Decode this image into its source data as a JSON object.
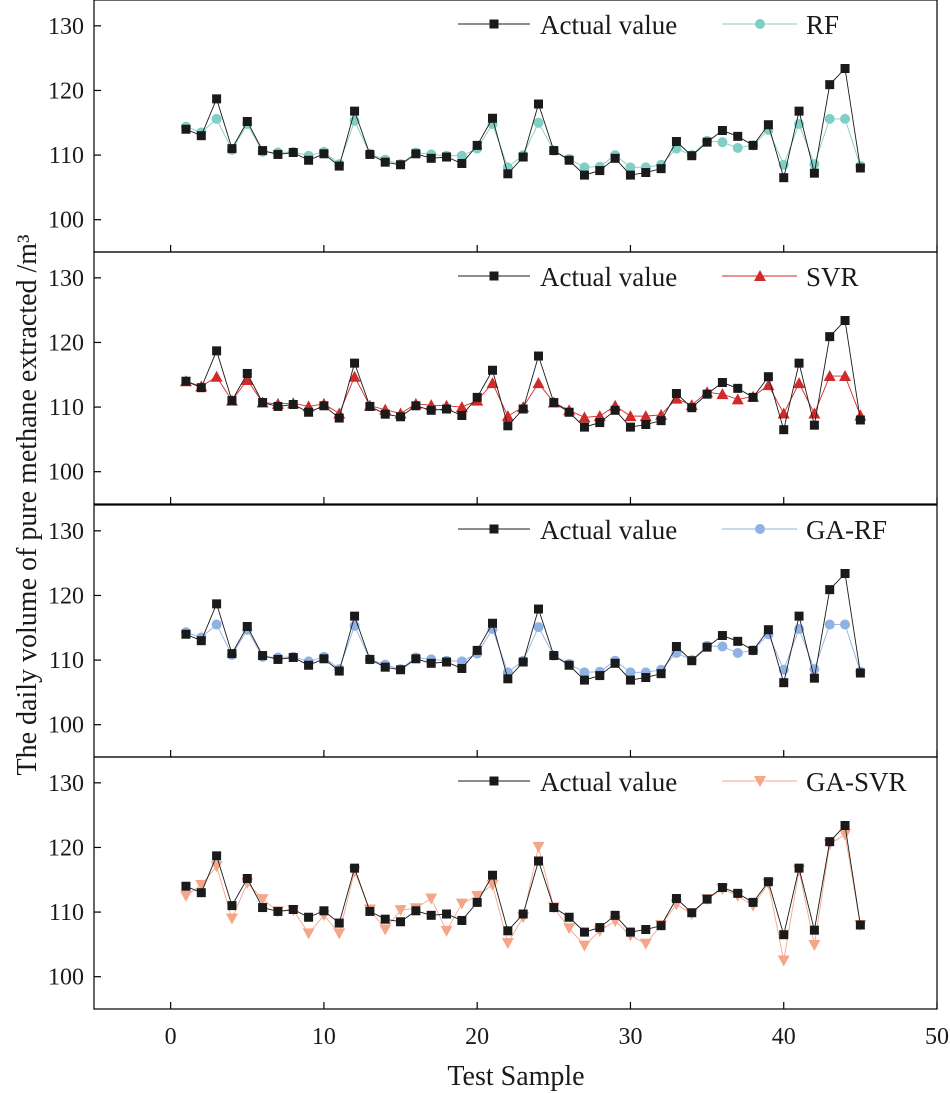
{
  "chart_data": {
    "type": "line",
    "xlabel": "Test Sample",
    "ylabel": "The daily volume of pure methane extracted /m³",
    "xlim": [
      -5,
      50
    ],
    "ylim": [
      95,
      134
    ],
    "xticks": [
      0,
      10,
      20,
      30,
      40,
      50
    ],
    "yticks": [
      100,
      110,
      120,
      130
    ],
    "x": [
      1,
      2,
      3,
      4,
      5,
      6,
      7,
      8,
      9,
      10,
      11,
      12,
      13,
      14,
      15,
      16,
      17,
      18,
      19,
      20,
      21,
      22,
      23,
      24,
      25,
      26,
      27,
      28,
      29,
      30,
      31,
      32,
      33,
      34,
      35,
      36,
      37,
      38,
      39,
      40,
      41,
      42,
      43,
      44,
      45
    ],
    "actual": {
      "name": "Actual value",
      "color": "#1a1a1a",
      "marker": "square",
      "values": [
        114.0,
        113.0,
        118.7,
        111.0,
        115.2,
        110.7,
        110.1,
        110.4,
        109.2,
        110.2,
        108.3,
        116.8,
        110.1,
        108.9,
        108.5,
        110.2,
        109.5,
        109.7,
        108.7,
        111.5,
        115.7,
        107.1,
        109.7,
        117.9,
        110.7,
        109.2,
        106.9,
        107.6,
        109.5,
        106.9,
        107.3,
        107.9,
        112.1,
        109.9,
        112.0,
        113.8,
        112.9,
        111.5,
        114.7,
        106.5,
        116.8,
        107.2,
        120.9,
        123.4,
        108.0
      ]
    },
    "panels": [
      {
        "name": "RF",
        "color": "#7fcfc4",
        "marker": "circle",
        "values": [
          114.4,
          113.5,
          115.6,
          110.8,
          114.8,
          110.5,
          110.4,
          110.5,
          109.9,
          110.5,
          108.6,
          115.3,
          110.2,
          109.3,
          108.6,
          110.4,
          110.1,
          109.9,
          109.9,
          111.0,
          114.8,
          108.1,
          110.0,
          115.0,
          110.7,
          109.4,
          108.1,
          108.2,
          110.0,
          108.1,
          108.1,
          108.5,
          111.0,
          110.0,
          112.2,
          112.0,
          111.1,
          111.5,
          113.9,
          108.5,
          114.8,
          108.6,
          115.6,
          115.6,
          108.3
        ]
      },
      {
        "name": "SVR",
        "color": "#d12a2a",
        "marker": "triangle-up",
        "values": [
          114.0,
          113.2,
          114.7,
          111.0,
          114.2,
          110.7,
          110.5,
          110.6,
          110.1,
          110.5,
          109.0,
          114.7,
          110.2,
          109.6,
          109.0,
          110.5,
          110.3,
          110.2,
          110.0,
          111.0,
          113.7,
          108.6,
          110.0,
          113.7,
          110.7,
          109.5,
          108.4,
          108.6,
          110.2,
          108.6,
          108.6,
          108.8,
          111.3,
          110.3,
          112.3,
          112.0,
          111.2,
          111.6,
          113.4,
          109.0,
          113.7,
          109.0,
          114.8,
          114.8,
          108.7
        ]
      },
      {
        "name": "GA-RF",
        "color": "#8fb1e3",
        "marker": "circle",
        "values": [
          114.3,
          113.5,
          115.5,
          110.8,
          114.7,
          110.5,
          110.4,
          110.5,
          109.8,
          110.5,
          108.6,
          115.3,
          110.1,
          109.3,
          108.6,
          110.4,
          110.1,
          109.9,
          109.8,
          111.0,
          114.8,
          108.1,
          109.9,
          115.1,
          110.7,
          109.4,
          108.1,
          108.2,
          109.9,
          108.1,
          108.1,
          108.5,
          111.1,
          110.0,
          112.2,
          112.1,
          111.1,
          111.5,
          114.0,
          108.5,
          114.8,
          108.6,
          115.5,
          115.5,
          108.2
        ]
      },
      {
        "name": "GA-SVR",
        "color": "#f5a688",
        "marker": "triangle-down",
        "values": [
          112.5,
          114.2,
          117.1,
          109.0,
          114.5,
          112.0,
          110.1,
          110.3,
          106.7,
          109.5,
          106.7,
          116.3,
          110.4,
          107.3,
          110.3,
          110.6,
          112.1,
          107.1,
          111.3,
          112.5,
          114.2,
          105.2,
          109.2,
          120.1,
          110.7,
          107.5,
          104.8,
          107.1,
          108.6,
          106.4,
          105.1,
          108.0,
          111.2,
          109.7,
          112.0,
          113.6,
          112.5,
          111.0,
          114.4,
          102.5,
          116.5,
          104.9,
          120.5,
          122.0,
          108.0
        ]
      }
    ]
  }
}
